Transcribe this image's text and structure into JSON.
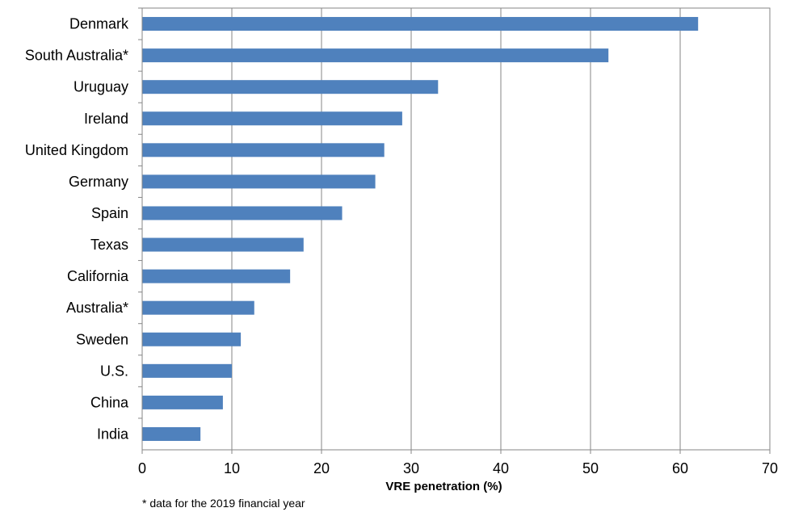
{
  "chart_data": {
    "type": "bar",
    "orientation": "horizontal",
    "categories": [
      "Denmark",
      "South Australia*",
      "Uruguay",
      "Ireland",
      "United Kingdom",
      "Germany",
      "Spain",
      "Texas",
      "California",
      "Australia*",
      "Sweden",
      "U.S.",
      "China",
      "India"
    ],
    "values": [
      62,
      52,
      33,
      29,
      27,
      26,
      22.3,
      18,
      16.5,
      12.5,
      11,
      10,
      9,
      6.5
    ],
    "title": "",
    "xlabel": "VRE penetration (%)",
    "ylabel": "",
    "xlim": [
      0,
      70
    ],
    "xticks": [
      0,
      10,
      20,
      30,
      40,
      50,
      60,
      70
    ],
    "grid": "vertical",
    "legend": "none",
    "bar_color": "#4F81BD",
    "footnote": "* data for the 2019 financial year"
  }
}
